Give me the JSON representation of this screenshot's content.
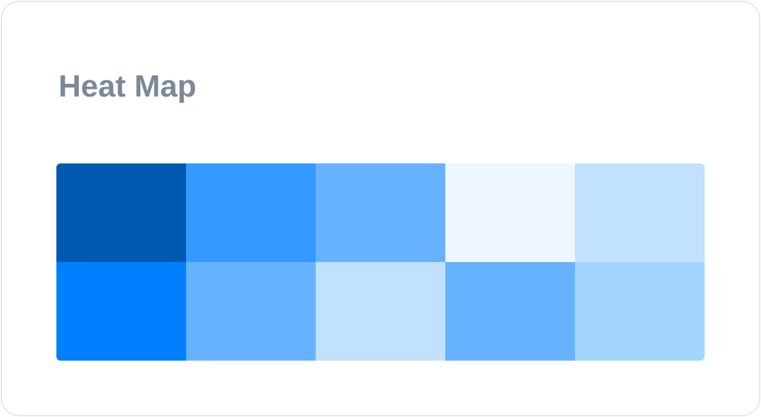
{
  "header": {
    "title": "Heat Map"
  },
  "heatmap": {
    "rows": [
      [
        "#0058b0",
        "#3399ff",
        "#66b2ff",
        "#eef6ff",
        "#c2e0ff"
      ],
      [
        "#0080ff",
        "#66b2ff",
        "#c2e0ff",
        "#66b2ff",
        "#a3d6ff"
      ]
    ]
  }
}
